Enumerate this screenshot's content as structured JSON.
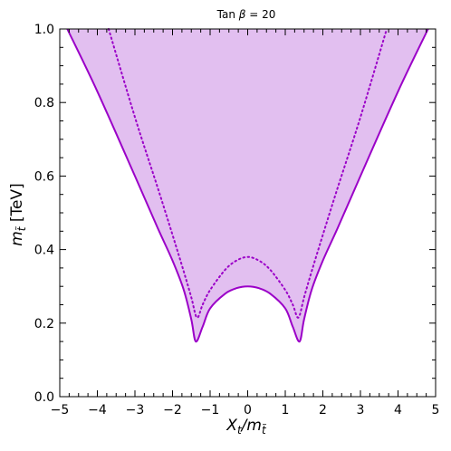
{
  "chart_data": {
    "type": "area",
    "title_prefix": "Tan ",
    "title_symbol": "β",
    "title_suffix": " = 20",
    "xlabel_main": "X",
    "xlabel_sub": "t",
    "xlabel_sep": "/m",
    "xlabel_sub2": "t̃",
    "ylabel_main": "m",
    "ylabel_sub": "t̃",
    "ylabel_unit": " [TeV]",
    "xlim": [
      -5,
      5
    ],
    "ylim": [
      0.0,
      1.0
    ],
    "x_ticks": [
      "−5",
      "−4",
      "−3",
      "−2",
      "−1",
      "0",
      "1",
      "2",
      "3",
      "4",
      "5"
    ],
    "x_tick_values": [
      -5,
      -4,
      -3,
      -2,
      -1,
      0,
      1,
      2,
      3,
      4,
      5
    ],
    "y_ticks": [
      "0.0",
      "0.2",
      "0.4",
      "0.6",
      "0.8",
      "1.0"
    ],
    "y_tick_values": [
      0.0,
      0.2,
      0.4,
      0.6,
      0.8,
      1.0
    ],
    "grid": false,
    "fill_color": "#e2bff0",
    "line_color": "#9b00c8",
    "series": [
      {
        "style": "solid",
        "x": [
          -4.8,
          -4.0,
          -3.0,
          -2.4,
          -2.0,
          -1.7,
          -1.5,
          -1.38,
          -1.2,
          -1.0,
          -0.6,
          -0.3,
          0.0,
          0.3,
          0.6,
          1.0,
          1.2,
          1.38,
          1.5,
          1.7,
          2.0,
          2.4,
          3.0,
          4.0,
          4.8
        ],
        "y": [
          1.0,
          0.83,
          0.6,
          0.46,
          0.37,
          0.29,
          0.21,
          0.15,
          0.19,
          0.24,
          0.28,
          0.295,
          0.3,
          0.295,
          0.28,
          0.24,
          0.19,
          0.15,
          0.21,
          0.29,
          0.37,
          0.46,
          0.6,
          0.83,
          1.0
        ]
      },
      {
        "style": "dotted",
        "x": [
          -3.7,
          -3.0,
          -2.4,
          -2.0,
          -1.7,
          -1.5,
          -1.35,
          -1.2,
          -1.0,
          -0.6,
          -0.3,
          0.0,
          0.3,
          0.6,
          1.0,
          1.2,
          1.35,
          1.5,
          1.7,
          2.0,
          2.4,
          3.0,
          3.7
        ],
        "y": [
          1.0,
          0.76,
          0.57,
          0.44,
          0.34,
          0.27,
          0.215,
          0.25,
          0.29,
          0.345,
          0.37,
          0.38,
          0.37,
          0.345,
          0.29,
          0.25,
          0.215,
          0.27,
          0.34,
          0.44,
          0.57,
          0.76,
          1.0
        ]
      }
    ]
  }
}
